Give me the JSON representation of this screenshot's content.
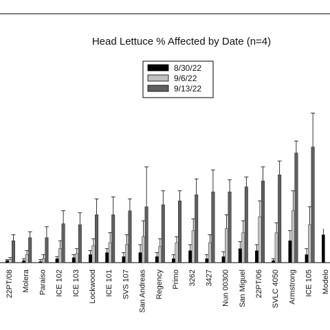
{
  "chart_data": {
    "type": "bar",
    "title": "Head Lettuce % Affected by Date (n=4)",
    "xlabel": "",
    "ylabel": "",
    "ylim": [
      0,
      100
    ],
    "grid": false,
    "legend_position": "top-center",
    "categories": [
      "22PT/08",
      "Molera",
      "Paraiso",
      "ICE 102",
      "ICE 103",
      "Lockwood",
      "ICE 101",
      "SVS 107",
      "San Andreas",
      "Regency",
      "Primo",
      "3262",
      "3427",
      "Nun 00300",
      "San Miguel",
      "22PT/06",
      "SVLC 4050",
      "Armstrong",
      "ICE 105"
    ],
    "series": [
      {
        "name": "8/30/22",
        "color": "#000000",
        "values": [
          1,
          1,
          0.5,
          2,
          2.5,
          4,
          5,
          3,
          5,
          3,
          2,
          6,
          2,
          3,
          7,
          6,
          1,
          11,
          4
        ],
        "errors": [
          0.5,
          1,
          1,
          1,
          1.5,
          2,
          2,
          2,
          4,
          2,
          2,
          3,
          2,
          2.5,
          3.5,
          3,
          1,
          5,
          3
        ]
      },
      {
        "name": "9/6/22",
        "color": "#c0c0c0",
        "values": [
          1.5,
          4,
          2,
          7,
          4.5,
          8.5,
          10,
          9,
          13,
          8,
          10,
          16,
          10,
          17,
          15,
          23,
          15,
          26,
          19
        ],
        "errors": [
          1,
          2,
          2,
          4,
          2.5,
          3.5,
          5,
          5,
          8,
          4,
          3,
          6,
          4,
          7,
          6,
          8,
          5,
          10,
          9
        ]
      },
      {
        "name": "9/13/22",
        "color": "#606060",
        "values": [
          11,
          12.5,
          12.5,
          19.5,
          19,
          24,
          24,
          26,
          28,
          29,
          31,
          34,
          35.5,
          35.5,
          38,
          41,
          44,
          55,
          58
        ],
        "errors": [
          3,
          3,
          5.5,
          6.5,
          6,
          8,
          9,
          6,
          20,
          7,
          5,
          8,
          11,
          6,
          5,
          7,
          7,
          6,
          17
        ]
      }
    ]
  },
  "cut_label": "Modelo"
}
